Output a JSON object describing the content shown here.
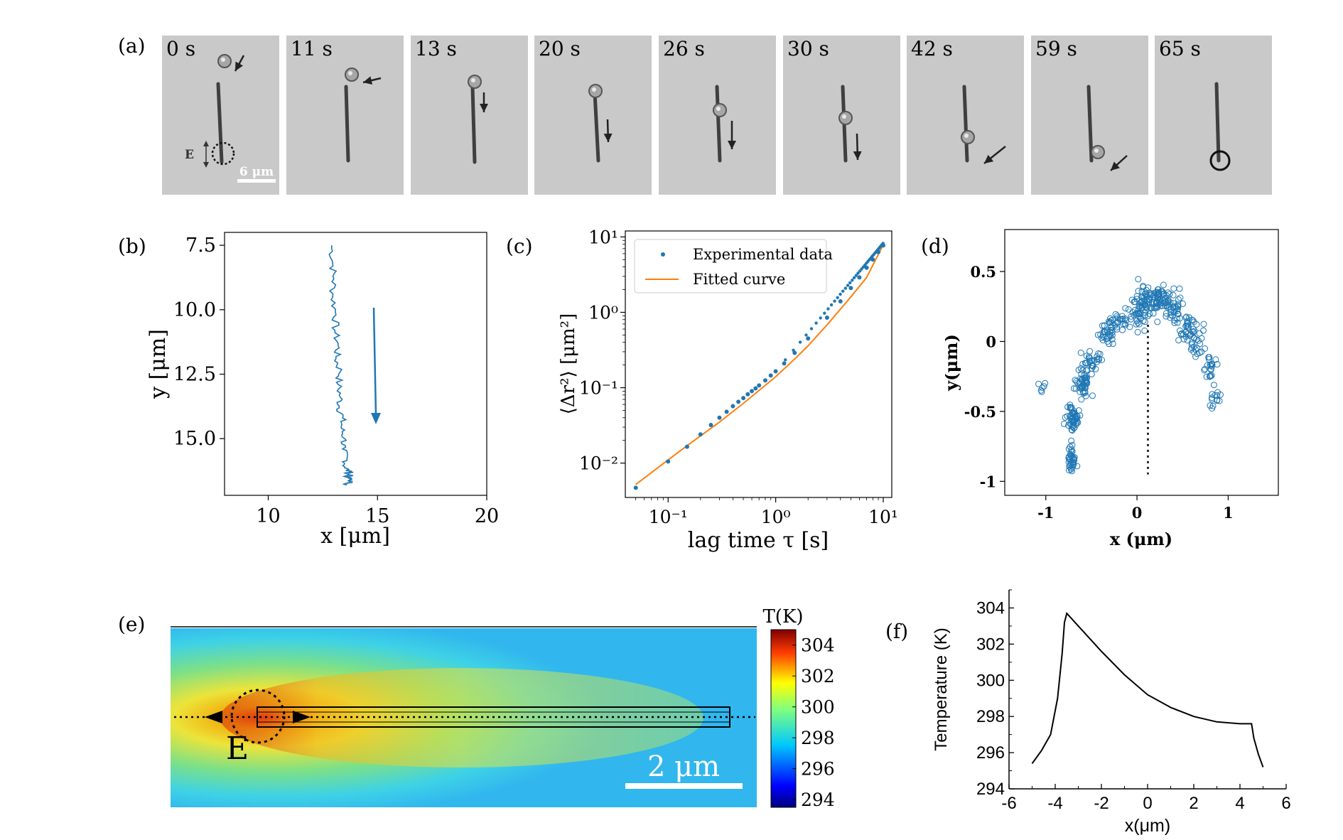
{
  "panel_labels": [
    "(a)",
    "(b)",
    "(c)",
    "(d)",
    "(e)",
    "(f)"
  ],
  "panel_a": {
    "frames": [
      "0 s",
      "11 s",
      "13 s",
      "20 s",
      "26 s",
      "30 s",
      "42 s",
      "59 s",
      "65 s"
    ],
    "field_label": "E",
    "scale_bar": "6 μm"
  },
  "chart_data": [
    {
      "id": "b",
      "type": "line",
      "title": "",
      "xlabel": "x [μm]",
      "ylabel": "y [μm]",
      "xlim": [
        8,
        20
      ],
      "ylim": [
        17.2,
        7.0
      ],
      "xticks": [
        "10",
        "15",
        "20"
      ],
      "yticks": [
        "7.5",
        "10.0",
        "12.5",
        "15.0"
      ],
      "series": [
        {
          "name": "trajectory",
          "x": [
            12.9,
            12.95,
            13.0,
            12.95,
            13.1,
            13.05,
            13.2,
            13.1,
            13.3,
            13.2,
            13.3,
            13.25,
            13.4,
            13.35,
            13.5,
            13.4,
            13.6,
            13.5,
            13.7,
            13.6,
            13.8,
            13.6,
            13.7,
            13.9
          ],
          "y": [
            7.5,
            8.2,
            8.8,
            9.5,
            10.2,
            10.8,
            11.4,
            11.9,
            12.4,
            12.9,
            13.4,
            13.8,
            14.2,
            14.6,
            15.0,
            15.4,
            15.8,
            16.1,
            16.3,
            16.5,
            16.6,
            16.8,
            16.5,
            16.3
          ]
        }
      ],
      "annotation": "arrow indicating downward motion"
    },
    {
      "id": "c",
      "type": "scatter",
      "xlabel": "lag time τ [s]",
      "ylabel": "⟨Δr²⟩ [μm²]",
      "xscale": "log",
      "yscale": "log",
      "xlim": [
        0.04,
        12
      ],
      "ylim": [
        0.0035,
        12
      ],
      "xticks": [
        "10⁻¹",
        "10⁰",
        "10¹"
      ],
      "yticks": [
        "10⁻²",
        "10⁻¹",
        "10⁰",
        "10¹"
      ],
      "legend": [
        "Experimental data",
        "Fitted curve"
      ],
      "legend_position": "top-left",
      "series": [
        {
          "name": "Experimental data",
          "x": [
            0.05,
            0.1,
            0.15,
            0.2,
            0.25,
            0.3,
            0.35,
            0.4,
            0.45,
            0.5,
            0.55,
            0.6,
            0.65,
            0.7,
            0.8,
            0.9,
            1.0,
            1.2,
            1.5,
            2,
            3,
            4,
            5,
            6,
            7,
            8,
            9,
            10
          ],
          "y": [
            0.0047,
            0.0105,
            0.0165,
            0.024,
            0.032,
            0.04,
            0.048,
            0.057,
            0.065,
            0.073,
            0.082,
            0.09,
            0.098,
            0.107,
            0.125,
            0.145,
            0.165,
            0.21,
            0.29,
            0.45,
            0.85,
            1.4,
            2.1,
            2.9,
            3.9,
            5.0,
            6.3,
            7.7
          ]
        },
        {
          "name": "Fitted curve",
          "x": [
            0.05,
            0.07,
            0.1,
            0.15,
            0.2,
            0.3,
            0.5,
            0.7,
            1.0,
            1.5,
            2,
            3,
            5,
            7,
            10
          ],
          "y": [
            0.0052,
            0.0075,
            0.011,
            0.017,
            0.023,
            0.035,
            0.062,
            0.092,
            0.14,
            0.24,
            0.36,
            0.68,
            1.6,
            2.9,
            7.9
          ]
        }
      ]
    },
    {
      "id": "d",
      "type": "scatter",
      "xlabel": "x (μm)",
      "ylabel": "y(μm)",
      "xlim": [
        -1.45,
        1.55
      ],
      "ylim": [
        -1.1,
        0.8
      ],
      "xticks": [
        "-1",
        "0",
        "1"
      ],
      "yticks": [
        "-1",
        "-0.5",
        "0",
        "0.5"
      ],
      "marker": "open-circle",
      "cluster_centers": [
        [
          -1.05,
          -0.33
        ],
        [
          -0.7,
          -0.55
        ],
        [
          -0.72,
          -0.85
        ],
        [
          -0.6,
          -0.3
        ],
        [
          -0.5,
          -0.15
        ],
        [
          -0.35,
          0.05
        ],
        [
          -0.2,
          0.15
        ],
        [
          0.0,
          0.2
        ],
        [
          0.1,
          0.3
        ],
        [
          0.25,
          0.3
        ],
        [
          0.4,
          0.25
        ],
        [
          0.55,
          0.1
        ],
        [
          0.65,
          0.0
        ],
        [
          0.8,
          -0.2
        ],
        [
          0.85,
          -0.4
        ]
      ],
      "annotation": "dotted vertical line at x = 0.12"
    },
    {
      "id": "e",
      "type": "heatmap",
      "title": "T(K)",
      "colorbar_ticks": [
        "294",
        "296",
        "298",
        "300",
        "302",
        "304"
      ],
      "colorbar_range": [
        293.5,
        305
      ],
      "field_label": "E",
      "scale_bar": "2 μm"
    },
    {
      "id": "f",
      "type": "line",
      "xlabel": "x(μm)",
      "ylabel": "Temperature (K)",
      "xlim": [
        -6,
        6
      ],
      "ylim": [
        294,
        305
      ],
      "xticks": [
        "-6",
        "-4",
        "-2",
        "0",
        "2",
        "4",
        "6"
      ],
      "yticks": [
        "294",
        "296",
        "298",
        "300",
        "302",
        "304"
      ],
      "series": [
        {
          "name": "temperature",
          "x": [
            -5.0,
            -4.6,
            -4.2,
            -3.9,
            -3.7,
            -3.6,
            -3.5,
            -3.0,
            -2.0,
            -1.0,
            0.0,
            1.0,
            2.0,
            3.0,
            4.0,
            4.5,
            4.6,
            4.8,
            5.0
          ],
          "y": [
            295.4,
            296.1,
            297.0,
            299.0,
            301.5,
            303.2,
            303.7,
            303.0,
            301.6,
            300.3,
            299.2,
            298.5,
            298.0,
            297.7,
            297.6,
            297.6,
            296.8,
            295.9,
            295.2
          ]
        }
      ]
    }
  ]
}
